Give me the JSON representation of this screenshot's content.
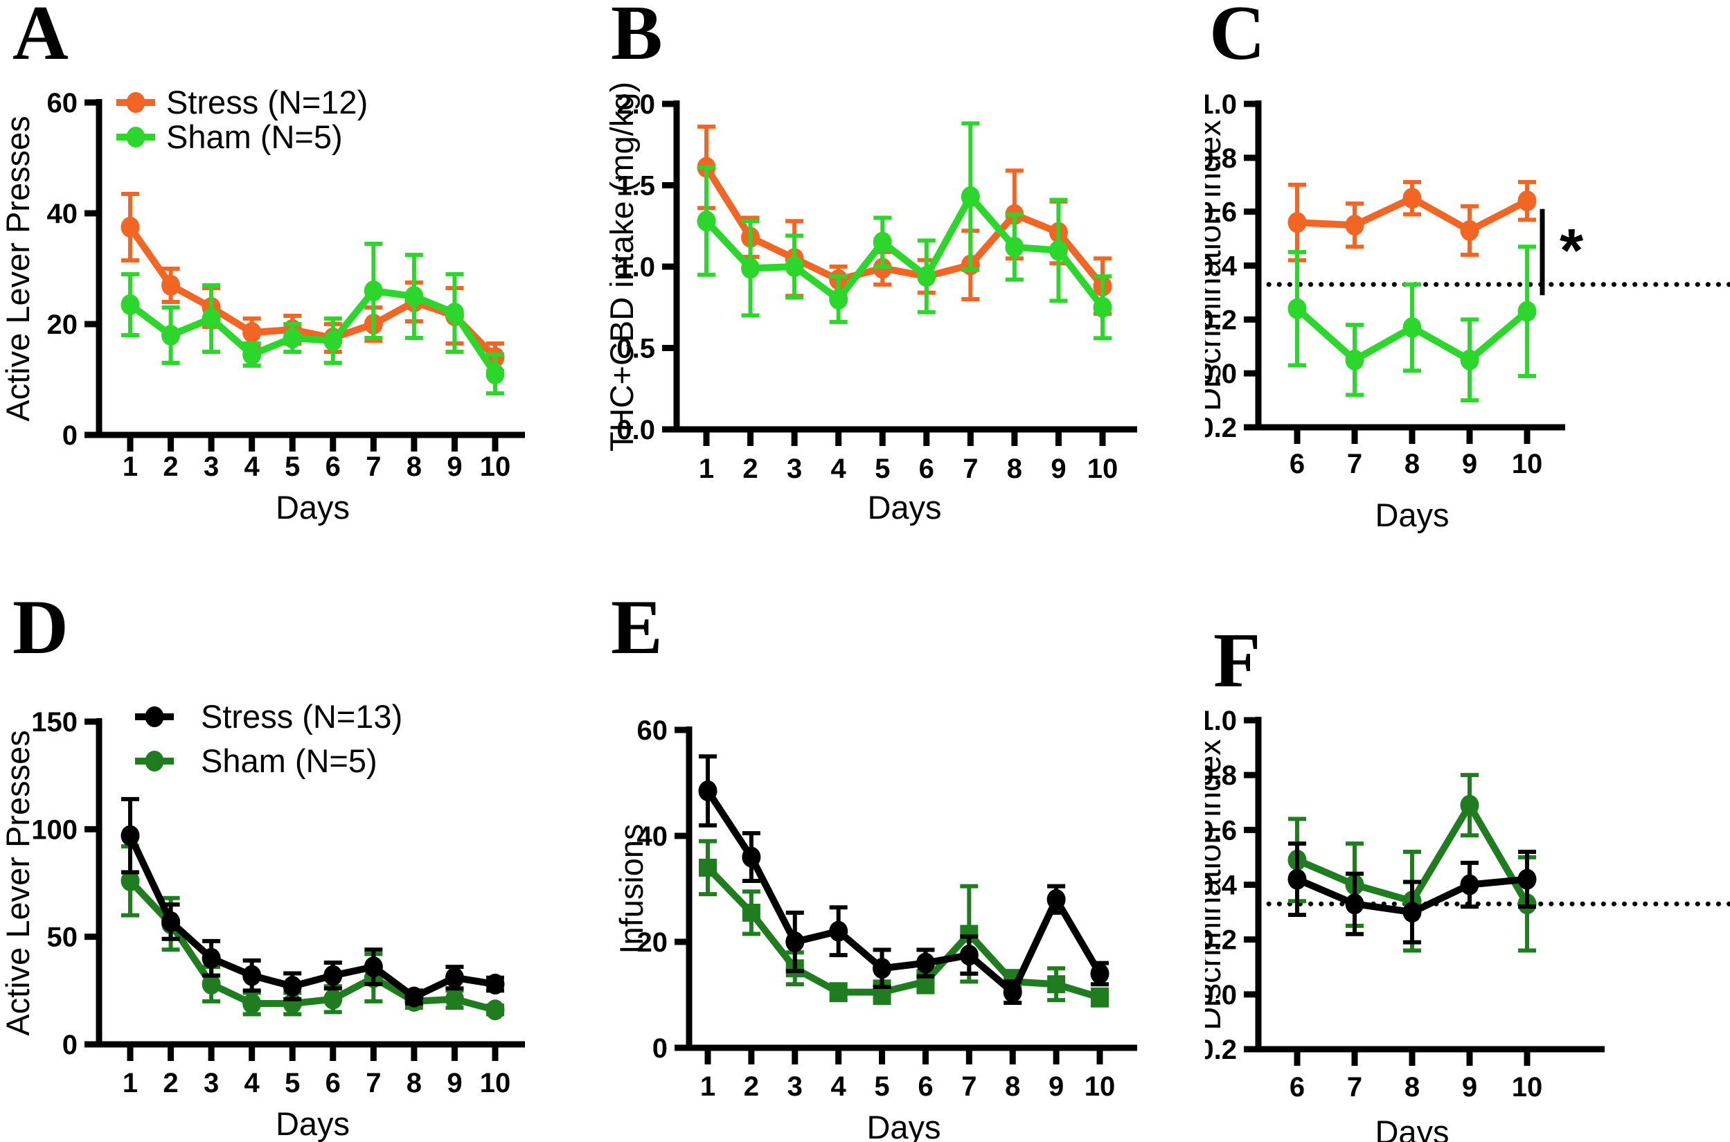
{
  "figure_title": "",
  "chart_data": [
    {
      "letter": "A",
      "type": "line",
      "title": "",
      "xlabel": "Days",
      "ylabel": "Active Lever Presses",
      "x": [
        1,
        2,
        3,
        4,
        5,
        6,
        7,
        8,
        9,
        10
      ],
      "ylim": [
        0,
        60
      ],
      "ytick_values": [
        0,
        20,
        40,
        60
      ],
      "ytick_labels": [
        "0",
        "20",
        "40",
        "60"
      ],
      "legend_position": "top-left-inside",
      "grid": false,
      "series": [
        {
          "group": "stress",
          "label": "Stress (N=12)",
          "color": "#F26522",
          "marker": "circle",
          "values": [
            37.5,
            27,
            23,
            18.5,
            19,
            17.5,
            20,
            24,
            21.5,
            14
          ],
          "sem": [
            6,
            3,
            3.5,
            2.5,
            2.5,
            2.5,
            3,
            3.5,
            5,
            2.5
          ]
        },
        {
          "group": "sham",
          "label": "Sham (N=5)",
          "color": "#2BD72B",
          "marker": "circle",
          "values": [
            23.5,
            18,
            21,
            14.5,
            17.5,
            17,
            26,
            25,
            22,
            11
          ],
          "sem": [
            5.5,
            5,
            6,
            2,
            2.5,
            4,
            8.5,
            7.5,
            7,
            3.5
          ]
        }
      ]
    },
    {
      "letter": "B",
      "type": "line",
      "title": "",
      "xlabel": "Days",
      "ylabel": "THC+CBD intake (mg/kg)",
      "x": [
        1,
        2,
        3,
        4,
        5,
        6,
        7,
        8,
        9,
        10
      ],
      "ylim": [
        0,
        2.0
      ],
      "ytick_values": [
        0,
        0.5,
        1.0,
        1.5,
        2.0
      ],
      "ytick_labels": [
        "0.0",
        "0.5",
        "1.0",
        "1.5",
        "2.0"
      ],
      "legend_position": "none",
      "grid": false,
      "series": [
        {
          "group": "stress",
          "color": "#F26522",
          "marker": "circle",
          "values": [
            1.61,
            1.18,
            1.05,
            0.92,
            0.99,
            0.94,
            1.01,
            1.32,
            1.21,
            0.88
          ],
          "sem": [
            0.25,
            0.12,
            0.23,
            0.08,
            0.1,
            0.1,
            0.21,
            0.27,
            0.19,
            0.17
          ]
        },
        {
          "group": "sham",
          "color": "#2BD72B",
          "marker": "circle",
          "values": [
            1.28,
            0.99,
            1.0,
            0.8,
            1.15,
            0.94,
            1.43,
            1.12,
            1.1,
            0.75
          ],
          "sem": [
            0.33,
            0.29,
            0.19,
            0.14,
            0.15,
            0.22,
            0.45,
            0.2,
            0.31,
            0.19
          ]
        }
      ]
    },
    {
      "letter": "C",
      "type": "line",
      "title": "",
      "xlabel": "Days",
      "ylabel": "Discrimination index",
      "x": [
        6,
        7,
        8,
        9,
        10
      ],
      "ylim": [
        -0.2,
        1.0
      ],
      "ytick_values": [
        -0.2,
        0.0,
        0.2,
        0.4,
        0.6,
        0.8,
        1.0
      ],
      "ytick_labels": [
        "-0.2",
        "0.0",
        "0.2",
        "0.4",
        "0.6",
        "0.8",
        "1.0"
      ],
      "legend_position": "none",
      "grid": false,
      "chance_line": 0.33,
      "annotation": {
        "text": "*"
      },
      "series": [
        {
          "group": "stress",
          "color": "#F26522",
          "marker": "circle",
          "values": [
            0.56,
            0.55,
            0.65,
            0.53,
            0.64
          ],
          "sem": [
            0.14,
            0.08,
            0.06,
            0.09,
            0.07
          ]
        },
        {
          "group": "sham",
          "color": "#2BD72B",
          "marker": "circle",
          "values": [
            0.24,
            0.05,
            0.17,
            0.05,
            0.23
          ],
          "sem": [
            0.21,
            0.13,
            0.16,
            0.15,
            0.24
          ]
        }
      ]
    },
    {
      "letter": "D",
      "type": "line",
      "title": "",
      "xlabel": "Days",
      "ylabel": "Active Lever Presses",
      "x": [
        1,
        2,
        3,
        4,
        5,
        6,
        7,
        8,
        9,
        10
      ],
      "ylim": [
        0,
        150
      ],
      "ytick_values": [
        0,
        50,
        100,
        150
      ],
      "ytick_labels": [
        "0",
        "50",
        "100",
        "150"
      ],
      "legend_position": "top-left-inside",
      "grid": false,
      "series": [
        {
          "group": "stress",
          "label": "Stress (N=13)",
          "color": "#000000",
          "marker": "circle",
          "values": [
            97,
            57,
            40,
            32,
            27,
            32,
            36,
            22,
            31,
            28
          ],
          "sem": [
            17,
            8,
            8,
            7,
            6,
            6,
            8,
            3,
            5,
            3
          ]
        },
        {
          "group": "sham",
          "label": "Sham (N=5)",
          "color": "#1F7D1F",
          "marker": "circle",
          "values": [
            76,
            56,
            28,
            19,
            19,
            21,
            31,
            20,
            21,
            16
          ],
          "sem": [
            16,
            12,
            8,
            5,
            5,
            6,
            11,
            3,
            4,
            2
          ]
        }
      ]
    },
    {
      "letter": "E",
      "type": "line",
      "title": "",
      "xlabel": "Days",
      "ylabel": "Infusions",
      "x": [
        1,
        2,
        3,
        4,
        5,
        6,
        7,
        8,
        9,
        10
      ],
      "ylim": [
        0,
        60
      ],
      "ytick_values": [
        0,
        20,
        40,
        60
      ],
      "ytick_labels": [
        "0",
        "20",
        "40",
        "60"
      ],
      "legend_position": "none",
      "grid": false,
      "series": [
        {
          "group": "stress",
          "color": "#000000",
          "marker": "circle",
          "values": [
            48.5,
            36,
            20,
            22,
            15,
            16,
            17.5,
            10.5,
            28,
            14
          ],
          "sem": [
            6.5,
            4.5,
            5.5,
            4.5,
            3.5,
            2.5,
            3.5,
            2,
            2.5,
            2
          ]
        },
        {
          "group": "sham",
          "color": "#1F7D1F",
          "marker": "square",
          "values": [
            34,
            25.5,
            15,
            10.5,
            10.5,
            12.5,
            21.5,
            12.5,
            12,
            9.5
          ],
          "sem": [
            5,
            4,
            3,
            1.5,
            2,
            2,
            9,
            2,
            3,
            1.5
          ]
        }
      ]
    },
    {
      "letter": "F",
      "type": "line",
      "title": "",
      "xlabel": "Days",
      "ylabel": "Discrimination index",
      "x": [
        6,
        7,
        8,
        9,
        10
      ],
      "ylim": [
        -0.2,
        1.0
      ],
      "ytick_values": [
        -0.2,
        0.0,
        0.2,
        0.4,
        0.6,
        0.8,
        1.0
      ],
      "ytick_labels": [
        "-0.2",
        "0.0",
        "0.2",
        "0.4",
        "0.6",
        "0.8",
        "1.0"
      ],
      "legend_position": "none",
      "grid": false,
      "chance_line": 0.33,
      "series": [
        {
          "group": "stress",
          "color": "#000000",
          "marker": "circle",
          "values": [
            0.42,
            0.33,
            0.3,
            0.4,
            0.42
          ],
          "sem": [
            0.13,
            0.11,
            0.11,
            0.08,
            0.1
          ]
        },
        {
          "group": "sham",
          "color": "#1F7D1F",
          "marker": "circle",
          "values": [
            0.49,
            0.4,
            0.34,
            0.69,
            0.33
          ],
          "sem": [
            0.15,
            0.15,
            0.18,
            0.11,
            0.17
          ]
        }
      ]
    }
  ]
}
